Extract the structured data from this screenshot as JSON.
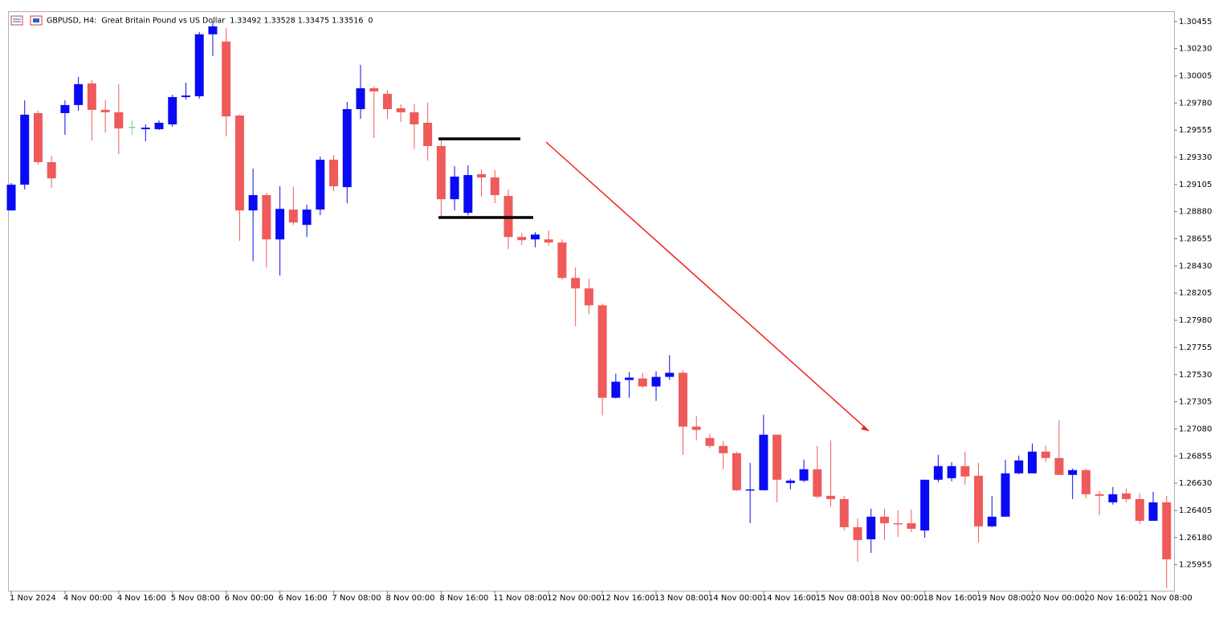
{
  "chart_data": {
    "type": "candlestick",
    "title": "GBPUSD, H4:  Great Britain Pound vs US Dollar  1.33492 1.33528 1.33475 1.33516  0",
    "up_color": "#0a0af5",
    "down_color": "#ef5a5a",
    "doji_color": "#7fcf9a",
    "categories": [
      "1 Nov 2024",
      null,
      null,
      null,
      "4 Nov 00:00",
      null,
      null,
      null,
      "4 Nov 16:00",
      null,
      null,
      null,
      "5 Nov 08:00",
      null,
      null,
      null,
      "6 Nov 00:00",
      null,
      null,
      null,
      "6 Nov 16:00",
      null,
      null,
      null,
      "7 Nov 08:00",
      null,
      null,
      null,
      "8 Nov 00:00",
      null,
      null,
      null,
      "8 Nov 16:00",
      null,
      null,
      null,
      "11 Nov 08:00",
      null,
      null,
      null,
      "12 Nov 00:00",
      null,
      null,
      null,
      "12 Nov 16:00",
      null,
      null,
      null,
      "13 Nov 08:00",
      null,
      null,
      null,
      "14 Nov 00:00",
      null,
      null,
      null,
      "14 Nov 16:00",
      null,
      null,
      null,
      "15 Nov 08:00",
      null,
      null,
      null,
      "18 Nov 00:00",
      null,
      null,
      null,
      "18 Nov 16:00",
      null,
      null,
      null,
      "19 Nov 08:00",
      null,
      null,
      null,
      "20 Nov 00:00",
      null,
      null,
      null,
      "20 Nov 16:00",
      null,
      null,
      null,
      "21 Nov 08:00",
      null,
      null
    ],
    "open": [
      1.2889,
      1.29103,
      1.29696,
      1.2929,
      1.29696,
      1.29763,
      1.29942,
      1.29723,
      1.29703,
      1.29583,
      1.29563,
      1.29563,
      1.29603,
      1.29829,
      1.29836,
      1.30349,
      1.30289,
      1.29676,
      1.2889,
      1.29017,
      1.2865,
      1.28897,
      1.2877,
      1.28897,
      1.2931,
      1.29083,
      1.29729,
      1.29902,
      1.29856,
      1.29736,
      1.29703,
      1.29616,
      1.29423,
      1.28983,
      1.2887,
      1.2919,
      1.29163,
      1.2901,
      1.2867,
      1.2865,
      1.2865,
      1.28624,
      1.28331,
      1.28244,
      1.28104,
      1.27338,
      1.27485,
      1.27498,
      1.27432,
      1.27511,
      1.27545,
      1.27099,
      1.27005,
      1.26939,
      1.26879,
      1.26572,
      1.26572,
      1.27032,
      1.26632,
      1.26652,
      1.26746,
      1.26526,
      1.26499,
      1.26266,
      1.26166,
      1.26353,
      1.26299,
      1.26299,
      1.26239,
      1.26659,
      1.26672,
      1.26772,
      1.26692,
      1.26273,
      1.26353,
      1.26712,
      1.26712,
      1.26892,
      1.26839,
      1.26699,
      1.26739,
      1.26539,
      1.26472,
      1.26546,
      1.26499,
      1.26319,
      1.26472
    ],
    "high": [
      1.29117,
      1.29802,
      1.29716,
      1.29343,
      1.29802,
      1.29996,
      1.29969,
      1.29802,
      1.29936,
      1.29636,
      1.29603,
      1.29636,
      1.29849,
      1.29949,
      1.30369,
      1.30455,
      1.30402,
      1.29683,
      1.29236,
      1.29037,
      1.2909,
      1.2909,
      1.28937,
      1.29336,
      1.2935,
      1.29789,
      1.30096,
      1.29916,
      1.29889,
      1.29769,
      1.29769,
      1.29783,
      1.29489,
      1.29256,
      1.29263,
      1.2923,
      1.29223,
      1.29063,
      1.28704,
      1.2871,
      1.28724,
      1.2865,
      1.28417,
      1.28324,
      1.28118,
      1.27538,
      1.27551,
      1.27545,
      1.27558,
      1.27691,
      1.27565,
      1.27185,
      1.27039,
      1.26979,
      1.26892,
      1.26799,
      1.27198,
      1.27032,
      1.26666,
      1.26825,
      1.26939,
      1.26985,
      1.26526,
      1.26339,
      1.26419,
      1.26419,
      1.26406,
      1.26413,
      1.26659,
      1.26865,
      1.26805,
      1.26892,
      1.26799,
      1.26526,
      1.26825,
      1.26859,
      1.26959,
      1.26939,
      1.27152,
      1.26752,
      1.26752,
      1.26566,
      1.26599,
      1.26586,
      1.26546,
      1.26559,
      1.26526
    ],
    "low": [
      1.2889,
      1.29063,
      1.2927,
      1.29077,
      1.29516,
      1.29716,
      1.29469,
      1.29536,
      1.29356,
      1.29516,
      1.29463,
      1.29556,
      1.29583,
      1.29809,
      1.29816,
      1.30169,
      1.29503,
      1.28637,
      1.2847,
      1.28417,
      1.28351,
      1.2877,
      1.2867,
      1.2885,
      1.2905,
      1.2895,
      1.29649,
      1.29489,
      1.29649,
      1.29623,
      1.29396,
      1.29303,
      1.28837,
      1.2889,
      1.2885,
      1.29003,
      1.2895,
      1.2857,
      1.28604,
      1.28584,
      1.28597,
      1.28317,
      1.27931,
      1.28031,
      1.27192,
      1.27332,
      1.27338,
      1.27418,
      1.27312,
      1.27485,
      1.26865,
      1.26985,
      1.26919,
      1.26746,
      1.26566,
      1.26299,
      1.26572,
      1.26472,
      1.26579,
      1.26639,
      1.26506,
      1.26439,
      1.26239,
      1.2598,
      1.26053,
      1.26159,
      1.26186,
      1.26226,
      1.26179,
      1.26639,
      1.26646,
      1.26619,
      1.26139,
      1.26266,
      1.26353,
      1.26706,
      1.26712,
      1.26805,
      1.26699,
      1.26499,
      1.26506,
      1.26366,
      1.26453,
      1.26472,
      1.26293,
      1.26319,
      1.2576
    ],
    "close": [
      1.29103,
      1.29683,
      1.2929,
      1.29156,
      1.29763,
      1.29936,
      1.29723,
      1.29703,
      1.29569,
      1.29583,
      1.29576,
      1.29616,
      1.29829,
      1.29842,
      1.30349,
      1.30415,
      1.29669,
      1.2889,
      1.29017,
      1.2865,
      1.28903,
      1.2879,
      1.28897,
      1.2931,
      1.2909,
      1.29729,
      1.29902,
      1.29876,
      1.29729,
      1.29703,
      1.29603,
      1.29423,
      1.28983,
      1.2917,
      1.29183,
      1.29163,
      1.29017,
      1.2867,
      1.28644,
      1.2869,
      1.28624,
      1.28331,
      1.28244,
      1.28104,
      1.27338,
      1.27471,
      1.27505,
      1.27432,
      1.27511,
      1.27545,
      1.27099,
      1.27072,
      1.26939,
      1.26879,
      1.26572,
      1.26579,
      1.27032,
      1.26659,
      1.26652,
      1.26746,
      1.26519,
      1.26499,
      1.26266,
      1.26159,
      1.26353,
      1.26299,
      1.26293,
      1.26253,
      1.26659,
      1.26772,
      1.26772,
      1.26686,
      1.26273,
      1.26353,
      1.26712,
      1.26819,
      1.26892,
      1.26839,
      1.26699,
      1.26739,
      1.26539,
      1.26526,
      1.26539,
      1.26499,
      1.26319,
      1.26472,
      1.26
    ],
    "ylim": [
      1.2574,
      1.3054
    ],
    "yticks": [
      1.30455,
      {
        "value": 1.3023,
        "label": "1.30230"
      },
      1.30005,
      {
        "value": 1.2978,
        "label": "1.29780"
      },
      1.29555,
      {
        "value": 1.2933,
        "label": "1.29330"
      },
      1.29105,
      {
        "value": 1.2888,
        "label": "1.28880"
      },
      1.28655,
      {
        "value": 1.2843,
        "label": "1.28430"
      },
      1.28205,
      {
        "value": 1.2798,
        "label": "1.27980"
      },
      1.27755,
      {
        "value": 1.2753,
        "label": "1.27530"
      },
      1.27305,
      {
        "value": 1.2708,
        "label": "1.27080"
      },
      1.26855,
      {
        "value": 1.2663,
        "label": "1.26630"
      },
      1.26405,
      {
        "value": 1.2618,
        "label": "1.26180"
      },
      1.25955
    ]
  }
}
